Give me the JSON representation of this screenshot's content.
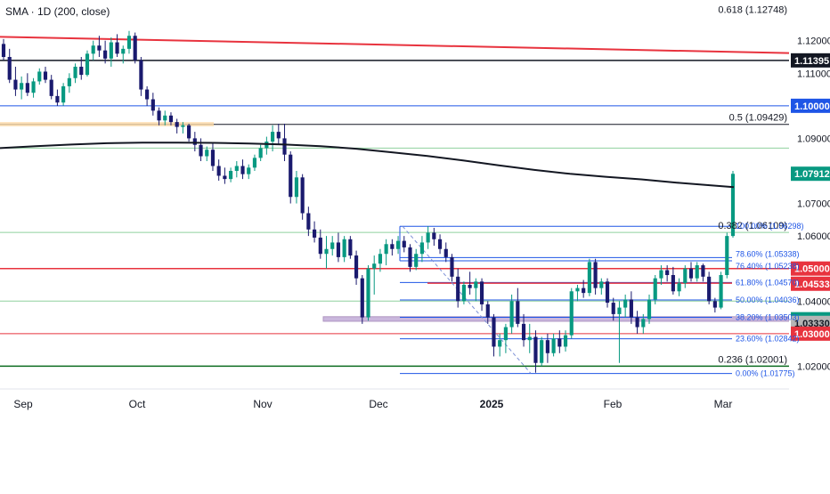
{
  "indicator_label": "SMA · 1D (200, close)",
  "chart_data": {
    "type": "candlestick",
    "ylim": [
      1.013,
      1.1325
    ],
    "grid": false,
    "colors": {
      "up": "#089981",
      "down": "#1a1a6e",
      "sma": "#131722",
      "fib_h": "#8fd19e",
      "ellipse_blue": "#1e55e6",
      "red": "#e8333e",
      "black": "#131722",
      "green_line": "#0b6b1f"
    },
    "x_ticks": [
      {
        "label": "Sep",
        "bold": false
      },
      {
        "label": "Oct",
        "bold": false
      },
      {
        "label": "Nov",
        "bold": false
      },
      {
        "label": "Dec",
        "bold": false
      },
      {
        "label": "2025",
        "bold": true
      },
      {
        "label": "Feb",
        "bold": false
      },
      {
        "label": "Mar",
        "bold": false
      }
    ],
    "y_ticks": [
      "1.12000",
      "1.11000",
      "1.09000",
      "1.07000",
      "1.06000",
      "1.04000",
      "1.02000"
    ],
    "price_badges": [
      {
        "label": "1.11395",
        "value": 1.11395,
        "bg": "#131722"
      },
      {
        "label": "1.10000",
        "value": 1.1,
        "bg": "#1e55e6"
      },
      {
        "label": "1.07912",
        "value": 1.07912,
        "bg": "#089981"
      },
      {
        "label": "1.05000",
        "value": 1.05,
        "bg": "#e8333e"
      },
      {
        "label": "1.04533",
        "value": 1.04533,
        "bg": "#e8333e"
      },
      {
        "label": "1.03443",
        "value": 1.03443,
        "bg": "#089981"
      },
      {
        "label": "1.03330",
        "value": 1.0333,
        "bg": "#b5b5b5"
      },
      {
        "label": "1.03000",
        "value": 1.03,
        "bg": "#e8333e"
      }
    ],
    "fib_labels": [
      {
        "text": "0.618 (1.12748)",
        "value": 1.12748
      },
      {
        "text": "0.5 (1.09429)",
        "value": 1.09429
      },
      {
        "text": "0.382 (1.06109)",
        "value": 1.06109
      },
      {
        "text": "0.236 (1.02001)",
        "value": 1.02001
      }
    ],
    "fib_small_labels": [
      {
        "text": "100.00% (1.06298)",
        "value": 1.06298
      },
      {
        "text": "78.60% (1.05338)",
        "value": 1.05338
      },
      {
        "text": "76.40% (1.05238)",
        "value": 1.05238
      },
      {
        "text": "61.80% (1.04570)",
        "value": 1.0457
      },
      {
        "text": "50.00% (1.04036)",
        "value": 1.04036
      },
      {
        "text": "38.20% (1.03503)",
        "value": 1.03503
      },
      {
        "text": "23.60% (1.02842)",
        "value": 1.02842
      },
      {
        "text": "0.00% (1.01775)",
        "value": 1.01775
      }
    ],
    "sma_200": [
      [
        0,
        1.087
      ],
      [
        40,
        1.0876
      ],
      [
        80,
        1.0881
      ],
      [
        120,
        1.0885
      ],
      [
        160,
        1.0887
      ],
      [
        200,
        1.0887
      ],
      [
        240,
        1.0886
      ],
      [
        280,
        1.0884
      ],
      [
        320,
        1.0881
      ],
      [
        360,
        1.0876
      ],
      [
        400,
        1.0868
      ],
      [
        440,
        1.0857
      ],
      [
        480,
        1.0846
      ],
      [
        520,
        1.0832
      ],
      [
        560,
        1.0817
      ],
      [
        600,
        1.0803
      ],
      [
        640,
        1.0791
      ],
      [
        680,
        1.0782
      ],
      [
        720,
        1.0774
      ],
      [
        760,
        1.0764
      ],
      [
        800,
        1.0755
      ],
      [
        824,
        1.075
      ]
    ],
    "candles": [
      {
        "o": 1.119,
        "h": 1.1205,
        "l": 1.114,
        "c": 1.115
      },
      {
        "o": 1.115,
        "h": 1.1175,
        "l": 1.107,
        "c": 1.108
      },
      {
        "o": 1.108,
        "h": 1.112,
        "l": 1.103,
        "c": 1.105
      },
      {
        "o": 1.105,
        "h": 1.109,
        "l": 1.102,
        "c": 1.107
      },
      {
        "o": 1.107,
        "h": 1.11,
        "l": 1.103,
        "c": 1.104
      },
      {
        "o": 1.104,
        "h": 1.1085,
        "l": 1.1025,
        "c": 1.1075
      },
      {
        "o": 1.1075,
        "h": 1.1115,
        "l": 1.1065,
        "c": 1.1105
      },
      {
        "o": 1.1105,
        "h": 1.112,
        "l": 1.107,
        "c": 1.108
      },
      {
        "o": 1.108,
        "h": 1.1095,
        "l": 1.102,
        "c": 1.103
      },
      {
        "o": 1.103,
        "h": 1.105,
        "l": 1.1,
        "c": 1.101
      },
      {
        "o": 1.101,
        "h": 1.107,
        "l": 1.1,
        "c": 1.106
      },
      {
        "o": 1.106,
        "h": 1.11,
        "l": 1.104,
        "c": 1.1085
      },
      {
        "o": 1.1085,
        "h": 1.113,
        "l": 1.107,
        "c": 1.112
      },
      {
        "o": 1.112,
        "h": 1.115,
        "l": 1.108,
        "c": 1.1095
      },
      {
        "o": 1.1095,
        "h": 1.117,
        "l": 1.109,
        "c": 1.116
      },
      {
        "o": 1.116,
        "h": 1.12,
        "l": 1.114,
        "c": 1.1185
      },
      {
        "o": 1.1185,
        "h": 1.1215,
        "l": 1.115,
        "c": 1.117
      },
      {
        "o": 1.117,
        "h": 1.12,
        "l": 1.113,
        "c": 1.1145
      },
      {
        "o": 1.1145,
        "h": 1.121,
        "l": 1.112,
        "c": 1.1195
      },
      {
        "o": 1.1195,
        "h": 1.122,
        "l": 1.115,
        "c": 1.116
      },
      {
        "o": 1.116,
        "h": 1.1185,
        "l": 1.113,
        "c": 1.1175
      },
      {
        "o": 1.1175,
        "h": 1.123,
        "l": 1.116,
        "c": 1.1215
      },
      {
        "o": 1.1215,
        "h": 1.1225,
        "l": 1.113,
        "c": 1.114
      },
      {
        "o": 1.114,
        "h": 1.115,
        "l": 1.103,
        "c": 1.105
      },
      {
        "o": 1.105,
        "h": 1.106,
        "l": 1.1,
        "c": 1.102
      },
      {
        "o": 1.102,
        "h": 1.104,
        "l": 1.097,
        "c": 1.0985
      },
      {
        "o": 1.0985,
        "h": 1.0995,
        "l": 1.094,
        "c": 1.0955
      },
      {
        "o": 1.0955,
        "h": 1.0985,
        "l": 1.094,
        "c": 1.097
      },
      {
        "o": 1.097,
        "h": 1.098,
        "l": 1.094,
        "c": 1.095
      },
      {
        "o": 1.095,
        "h": 1.096,
        "l": 1.0915,
        "c": 1.0935
      },
      {
        "o": 1.0935,
        "h": 1.095,
        "l": 1.0915,
        "c": 1.094
      },
      {
        "o": 1.094,
        "h": 1.0945,
        "l": 1.089,
        "c": 1.09
      },
      {
        "o": 1.09,
        "h": 1.092,
        "l": 1.086,
        "c": 1.088
      },
      {
        "o": 1.088,
        "h": 1.09,
        "l": 1.083,
        "c": 1.0845
      },
      {
        "o": 1.0845,
        "h": 1.0875,
        "l": 1.083,
        "c": 1.0865
      },
      {
        "o": 1.0865,
        "h": 1.0885,
        "l": 1.08,
        "c": 1.0815
      },
      {
        "o": 1.0815,
        "h": 1.0835,
        "l": 1.077,
        "c": 1.0785
      },
      {
        "o": 1.0785,
        "h": 1.081,
        "l": 1.076,
        "c": 1.0775
      },
      {
        "o": 1.0775,
        "h": 1.081,
        "l": 1.0765,
        "c": 1.08
      },
      {
        "o": 1.08,
        "h": 1.083,
        "l": 1.078,
        "c": 1.0815
      },
      {
        "o": 1.0815,
        "h": 1.0835,
        "l": 1.0775,
        "c": 1.079
      },
      {
        "o": 1.079,
        "h": 1.082,
        "l": 1.0775,
        "c": 1.081
      },
      {
        "o": 1.081,
        "h": 1.085,
        "l": 1.08,
        "c": 1.084
      },
      {
        "o": 1.084,
        "h": 1.088,
        "l": 1.083,
        "c": 1.087
      },
      {
        "o": 1.087,
        "h": 1.0905,
        "l": 1.085,
        "c": 1.089
      },
      {
        "o": 1.089,
        "h": 1.094,
        "l": 1.086,
        "c": 1.092
      },
      {
        "o": 1.092,
        "h": 1.0945,
        "l": 1.088,
        "c": 1.09
      },
      {
        "o": 1.09,
        "h": 1.0945,
        "l": 1.083,
        "c": 1.085
      },
      {
        "o": 1.085,
        "h": 1.086,
        "l": 1.07,
        "c": 1.072
      },
      {
        "o": 1.072,
        "h": 1.08,
        "l": 1.07,
        "c": 1.078
      },
      {
        "o": 1.078,
        "h": 1.079,
        "l": 1.065,
        "c": 1.067
      },
      {
        "o": 1.067,
        "h": 1.069,
        "l": 1.06,
        "c": 1.062
      },
      {
        "o": 1.062,
        "h": 1.0645,
        "l": 1.058,
        "c": 1.0595
      },
      {
        "o": 1.0595,
        "h": 1.062,
        "l": 1.053,
        "c": 1.0545
      },
      {
        "o": 1.0545,
        "h": 1.06,
        "l": 1.05,
        "c": 1.056
      },
      {
        "o": 1.056,
        "h": 1.06,
        "l": 1.054,
        "c": 1.058
      },
      {
        "o": 1.058,
        "h": 1.061,
        "l": 1.052,
        "c": 1.0535
      },
      {
        "o": 1.0535,
        "h": 1.06,
        "l": 1.052,
        "c": 1.059
      },
      {
        "o": 1.059,
        "h": 1.06,
        "l": 1.053,
        "c": 1.054
      },
      {
        "o": 1.054,
        "h": 1.0555,
        "l": 1.045,
        "c": 1.047
      },
      {
        "o": 1.047,
        "h": 1.048,
        "l": 1.033,
        "c": 1.035
      },
      {
        "o": 1.035,
        "h": 1.051,
        "l": 1.034,
        "c": 1.05
      },
      {
        "o": 1.05,
        "h": 1.054,
        "l": 1.042,
        "c": 1.0515
      },
      {
        "o": 1.0515,
        "h": 1.056,
        "l": 1.049,
        "c": 1.0545
      },
      {
        "o": 1.0545,
        "h": 1.059,
        "l": 1.051,
        "c": 1.0575
      },
      {
        "o": 1.0575,
        "h": 1.059,
        "l": 1.054,
        "c": 1.056
      },
      {
        "o": 1.056,
        "h": 1.06,
        "l": 1.0545,
        "c": 1.0585
      },
      {
        "o": 1.0585,
        "h": 1.06,
        "l": 1.055,
        "c": 1.0565
      },
      {
        "o": 1.0565,
        "h": 1.0575,
        "l": 1.049,
        "c": 1.0505
      },
      {
        "o": 1.0505,
        "h": 1.056,
        "l": 1.0495,
        "c": 1.0545
      },
      {
        "o": 1.0545,
        "h": 1.06,
        "l": 1.052,
        "c": 1.058
      },
      {
        "o": 1.058,
        "h": 1.063,
        "l": 1.056,
        "c": 1.061
      },
      {
        "o": 1.061,
        "h": 1.0625,
        "l": 1.057,
        "c": 1.059
      },
      {
        "o": 1.059,
        "h": 1.0605,
        "l": 1.0545,
        "c": 1.056
      },
      {
        "o": 1.056,
        "h": 1.058,
        "l": 1.052,
        "c": 1.0535
      },
      {
        "o": 1.0535,
        "h": 1.0545,
        "l": 1.046,
        "c": 1.0475
      },
      {
        "o": 1.0475,
        "h": 1.05,
        "l": 1.038,
        "c": 1.04
      },
      {
        "o": 1.04,
        "h": 1.046,
        "l": 1.039,
        "c": 1.045
      },
      {
        "o": 1.045,
        "h": 1.049,
        "l": 1.042,
        "c": 1.044
      },
      {
        "o": 1.044,
        "h": 1.047,
        "l": 1.04,
        "c": 1.046
      },
      {
        "o": 1.046,
        "h": 1.047,
        "l": 1.037,
        "c": 1.039
      },
      {
        "o": 1.039,
        "h": 1.04,
        "l": 1.033,
        "c": 1.035
      },
      {
        "o": 1.035,
        "h": 1.036,
        "l": 1.023,
        "c": 1.026
      },
      {
        "o": 1.026,
        "h": 1.03,
        "l": 1.023,
        "c": 1.028
      },
      {
        "o": 1.028,
        "h": 1.033,
        "l": 1.024,
        "c": 1.032
      },
      {
        "o": 1.032,
        "h": 1.042,
        "l": 1.03,
        "c": 1.04
      },
      {
        "o": 1.04,
        "h": 1.044,
        "l": 1.032,
        "c": 1.033
      },
      {
        "o": 1.033,
        "h": 1.036,
        "l": 1.026,
        "c": 1.028
      },
      {
        "o": 1.028,
        "h": 1.033,
        "l": 1.024,
        "c": 1.029
      },
      {
        "o": 1.029,
        "h": 1.031,
        "l": 1.018,
        "c": 1.021
      },
      {
        "o": 1.021,
        "h": 1.029,
        "l": 1.02,
        "c": 1.028
      },
      {
        "o": 1.028,
        "h": 1.03,
        "l": 1.021,
        "c": 1.024
      },
      {
        "o": 1.024,
        "h": 1.03,
        "l": 1.023,
        "c": 1.0285
      },
      {
        "o": 1.0285,
        "h": 1.031,
        "l": 1.024,
        "c": 1.026
      },
      {
        "o": 1.026,
        "h": 1.031,
        "l": 1.0245,
        "c": 1.0295
      },
      {
        "o": 1.0295,
        "h": 1.044,
        "l": 1.0285,
        "c": 1.043
      },
      {
        "o": 1.043,
        "h": 1.045,
        "l": 1.04,
        "c": 1.044
      },
      {
        "o": 1.044,
        "h": 1.0465,
        "l": 1.041,
        "c": 1.0425
      },
      {
        "o": 1.0425,
        "h": 1.053,
        "l": 1.0415,
        "c": 1.052
      },
      {
        "o": 1.052,
        "h": 1.053,
        "l": 1.042,
        "c": 1.044
      },
      {
        "o": 1.044,
        "h": 1.047,
        "l": 1.042,
        "c": 1.046
      },
      {
        "o": 1.046,
        "h": 1.047,
        "l": 1.038,
        "c": 1.0395
      },
      {
        "o": 1.0395,
        "h": 1.041,
        "l": 1.034,
        "c": 1.036
      },
      {
        "o": 1.036,
        "h": 1.04,
        "l": 1.021,
        "c": 1.038
      },
      {
        "o": 1.038,
        "h": 1.042,
        "l": 1.035,
        "c": 1.0405
      },
      {
        "o": 1.0405,
        "h": 1.043,
        "l": 1.033,
        "c": 1.035
      },
      {
        "o": 1.035,
        "h": 1.037,
        "l": 1.03,
        "c": 1.032
      },
      {
        "o": 1.032,
        "h": 1.036,
        "l": 1.03,
        "c": 1.0345
      },
      {
        "o": 1.0345,
        "h": 1.042,
        "l": 1.033,
        "c": 1.0405
      },
      {
        "o": 1.0405,
        "h": 1.048,
        "l": 1.039,
        "c": 1.047
      },
      {
        "o": 1.047,
        "h": 1.051,
        "l": 1.045,
        "c": 1.0495
      },
      {
        "o": 1.0495,
        "h": 1.051,
        "l": 1.046,
        "c": 1.048
      },
      {
        "o": 1.048,
        "h": 1.0505,
        "l": 1.042,
        "c": 1.043
      },
      {
        "o": 1.043,
        "h": 1.047,
        "l": 1.0415,
        "c": 1.0455
      },
      {
        "o": 1.0455,
        "h": 1.051,
        "l": 1.044,
        "c": 1.05
      },
      {
        "o": 1.05,
        "h": 1.052,
        "l": 1.046,
        "c": 1.047
      },
      {
        "o": 1.047,
        "h": 1.052,
        "l": 1.046,
        "c": 1.051
      },
      {
        "o": 1.051,
        "h": 1.0515,
        "l": 1.046,
        "c": 1.0475
      },
      {
        "o": 1.0475,
        "h": 1.049,
        "l": 1.039,
        "c": 1.04
      },
      {
        "o": 1.04,
        "h": 1.041,
        "l": 1.0365,
        "c": 1.038
      },
      {
        "o": 1.038,
        "h": 1.049,
        "l": 1.0375,
        "c": 1.048
      },
      {
        "o": 1.048,
        "h": 1.061,
        "l": 1.047,
        "c": 1.06
      },
      {
        "o": 1.06,
        "h": 1.08,
        "l": 1.0595,
        "c": 1.0791
      }
    ]
  }
}
